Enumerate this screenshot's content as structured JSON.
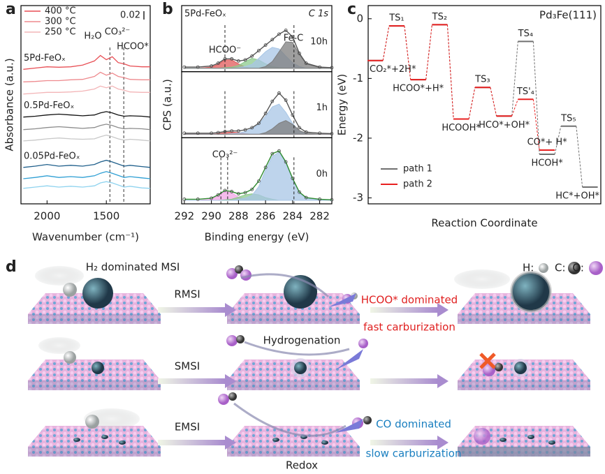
{
  "chart_data": [
    {
      "type": "line",
      "panel_label": "a",
      "xlabel": "Wavenumber (cm⁻¹)",
      "ylabel": "Absorbance (a.u.)",
      "x": [
        2200,
        2100,
        2000,
        1900,
        1800,
        1700,
        1600,
        1550,
        1500,
        1450,
        1400,
        1350,
        1300,
        1200,
        1130
      ],
      "xlim": [
        2220,
        1130
      ],
      "xticks": [
        2000,
        1500
      ],
      "ylim": [
        0,
        0.473
      ],
      "legend": [
        "400 °C",
        "300 °C",
        "250 °C"
      ],
      "group_labels": [
        "5Pd-FeOₓ",
        "0.5Pd-FeOₓ",
        "0.05Pd-FeOₓ"
      ],
      "annotations": [
        "H₂O",
        "CO₃²⁻",
        "HCOO*"
      ],
      "scale_bar": 0.02,
      "vlines": [
        1470,
        1353
      ],
      "series": [
        {
          "color": "#e84f55",
          "values": [
            0.321,
            0.324,
            0.327,
            0.326,
            0.327,
            0.331,
            0.341,
            0.354,
            0.344,
            0.351,
            0.337,
            0.334,
            0.329,
            0.327,
            0.327
          ]
        },
        {
          "color": "#ee8a8e",
          "values": [
            0.291,
            0.292,
            0.294,
            0.294,
            0.296,
            0.297,
            0.304,
            0.314,
            0.307,
            0.312,
            0.304,
            0.301,
            0.297,
            0.296,
            0.296
          ]
        },
        {
          "color": "#f3b5b7",
          "values": [
            0.262,
            0.264,
            0.266,
            0.266,
            0.267,
            0.269,
            0.274,
            0.281,
            0.277,
            0.281,
            0.274,
            0.271,
            0.267,
            0.266,
            0.266
          ]
        },
        {
          "color": "#111111",
          "values": [
            0.207,
            0.209,
            0.212,
            0.214,
            0.212,
            0.21,
            0.212,
            0.217,
            0.22,
            0.217,
            0.212,
            0.209,
            0.21,
            0.209,
            0.207
          ]
        },
        {
          "color": "#8c8c8c",
          "values": [
            0.177,
            0.179,
            0.182,
            0.184,
            0.182,
            0.18,
            0.182,
            0.187,
            0.19,
            0.187,
            0.182,
            0.179,
            0.18,
            0.179,
            0.177
          ]
        },
        {
          "color": "#c8c8c8",
          "values": [
            0.15,
            0.152,
            0.155,
            0.157,
            0.155,
            0.154,
            0.155,
            0.16,
            0.164,
            0.16,
            0.155,
            0.152,
            0.154,
            0.152,
            0.15
          ]
        },
        {
          "color": "#1f5f8b",
          "values": [
            0.087,
            0.09,
            0.094,
            0.09,
            0.092,
            0.09,
            0.094,
            0.1,
            0.104,
            0.1,
            0.095,
            0.09,
            0.092,
            0.089,
            0.087
          ]
        },
        {
          "color": "#2e9fd4",
          "values": [
            0.06,
            0.063,
            0.067,
            0.063,
            0.065,
            0.063,
            0.067,
            0.073,
            0.077,
            0.073,
            0.068,
            0.063,
            0.065,
            0.062,
            0.06
          ]
        },
        {
          "color": "#8fd3ef",
          "values": [
            0.037,
            0.04,
            0.043,
            0.04,
            0.042,
            0.04,
            0.043,
            0.05,
            0.053,
            0.05,
            0.045,
            0.04,
            0.042,
            0.038,
            0.037
          ]
        }
      ]
    },
    {
      "type": "xps",
      "panel_label": "b",
      "title": "5Pd-FeOₓ",
      "subtitle": "C 1s",
      "xlabel": "Binding energy (eV)",
      "ylabel": "CPS (a.u.)",
      "x": [
        292,
        291,
        290,
        289.5,
        289,
        288.5,
        288,
        287.5,
        287,
        286.5,
        286,
        285.5,
        285,
        284.5,
        284,
        283.5,
        283,
        282,
        281.1
      ],
      "xlim": [
        292.2,
        281.1
      ],
      "xticks": [
        292,
        290,
        288,
        286,
        284,
        282
      ],
      "ylim": [
        0,
        1
      ],
      "annotations": [
        "HCOO⁻",
        "Fe-C",
        "CO₃²⁻"
      ],
      "panels": [
        {
          "label": "10h",
          "vlines": [
            289.0,
            283.9
          ],
          "fit_color": "#555555",
          "values": [
            0.02,
            0.02,
            0.04,
            0.09,
            0.17,
            0.17,
            0.13,
            0.15,
            0.22,
            0.32,
            0.42,
            0.52,
            0.62,
            0.69,
            0.57,
            0.27,
            0.09,
            0.02,
            0.01
          ],
          "components": [
            {
              "color": "#e05a5a",
              "values": [
                0,
                0,
                0.02,
                0.07,
                0.15,
                0.15,
                0.08,
                0.02,
                0,
                0,
                0,
                0,
                0,
                0,
                0,
                0,
                0,
                0,
                0
              ]
            },
            {
              "color": "#8cc98c",
              "values": [
                0,
                0,
                0,
                0,
                0.01,
                0.02,
                0.05,
                0.12,
                0.18,
                0.15,
                0.08,
                0.03,
                0.01,
                0,
                0,
                0,
                0,
                0,
                0
              ]
            },
            {
              "color": "#a8c6e6",
              "values": [
                0,
                0,
                0,
                0,
                0,
                0,
                0.01,
                0.03,
                0.07,
                0.18,
                0.3,
                0.38,
                0.35,
                0.22,
                0.1,
                0.03,
                0,
                0,
                0
              ]
            },
            {
              "color": "#7d7d7d",
              "values": [
                0,
                0,
                0,
                0,
                0,
                0,
                0,
                0,
                0,
                0,
                0.03,
                0.12,
                0.3,
                0.48,
                0.47,
                0.25,
                0.08,
                0.01,
                0
              ]
            }
          ]
        },
        {
          "label": "1h",
          "vlines": [
            289.0,
            283.9
          ],
          "fit_color": "#555555",
          "values": [
            0.02,
            0.02,
            0.02,
            0.03,
            0.05,
            0.06,
            0.06,
            0.08,
            0.12,
            0.2,
            0.38,
            0.6,
            0.75,
            0.62,
            0.35,
            0.12,
            0.04,
            0.02,
            0.01
          ],
          "components": [
            {
              "color": "#e05a5a",
              "values": [
                0,
                0,
                0,
                0.01,
                0.03,
                0.04,
                0.03,
                0.01,
                0,
                0,
                0,
                0,
                0,
                0,
                0,
                0,
                0,
                0,
                0
              ]
            },
            {
              "color": "#a8c6e6",
              "values": [
                0,
                0,
                0,
                0,
                0,
                0.01,
                0.02,
                0.05,
                0.1,
                0.18,
                0.33,
                0.5,
                0.55,
                0.4,
                0.2,
                0.06,
                0.01,
                0,
                0
              ]
            },
            {
              "color": "#7d7d7d",
              "values": [
                0,
                0,
                0,
                0,
                0,
                0,
                0,
                0,
                0,
                0,
                0.03,
                0.1,
                0.2,
                0.25,
                0.18,
                0.07,
                0.02,
                0,
                0
              ]
            }
          ]
        },
        {
          "label": "0h",
          "vlines": [
            289.3,
            288.8,
            283.9
          ],
          "fit_color": "#2e8b2e",
          "values": [
            0.02,
            0.02,
            0.04,
            0.1,
            0.18,
            0.16,
            0.12,
            0.14,
            0.2,
            0.35,
            0.6,
            0.85,
            0.9,
            0.7,
            0.4,
            0.15,
            0.05,
            0.02,
            0.01
          ],
          "components": [
            {
              "color": "#f2a6e6",
              "values": [
                0,
                0,
                0.02,
                0.08,
                0.16,
                0.14,
                0.06,
                0.02,
                0,
                0,
                0,
                0,
                0,
                0,
                0,
                0,
                0,
                0,
                0
              ]
            },
            {
              "color": "#8cc98c",
              "values": [
                0,
                0,
                0,
                0,
                0.01,
                0.02,
                0.06,
                0.1,
                0.12,
                0.1,
                0.05,
                0.02,
                0,
                0,
                0,
                0,
                0,
                0,
                0
              ]
            },
            {
              "color": "#a8c6e6",
              "values": [
                0,
                0,
                0,
                0,
                0,
                0,
                0.02,
                0.04,
                0.09,
                0.25,
                0.55,
                0.8,
                0.88,
                0.68,
                0.38,
                0.14,
                0.04,
                0.01,
                0
              ]
            }
          ]
        }
      ]
    },
    {
      "type": "energy",
      "panel_label": "c",
      "title": "Pd₃Fe(111)",
      "xlabel": "Reaction Coordinate",
      "ylabel": "Energy (eV)",
      "xlim": [
        -0.33,
        10.5
      ],
      "ylim": [
        -3.1,
        0.22
      ],
      "yticks": [
        -3,
        -2,
        -1,
        0
      ],
      "legend_loc": "lower left",
      "series": [
        {
          "name": "path 1",
          "color": "#707070",
          "x": [
            0,
            1,
            2,
            3,
            4,
            5,
            6,
            7,
            8,
            9,
            10
          ],
          "values": [
            -0.7,
            -0.12,
            -1.02,
            -0.1,
            -1.68,
            -1.15,
            -1.63,
            -0.38,
            -2.27,
            -1.8,
            -2.82
          ],
          "labels": [
            "CO₂*+2H*",
            null,
            "HCOO*+H*",
            null,
            "HCOOH*",
            null,
            "HCO*+OH*",
            "TS₄",
            "HCOH*",
            "TS₅",
            "HC*+OH*"
          ]
        },
        {
          "name": "path 2",
          "color": "#e82020",
          "x": [
            0,
            1,
            2,
            3,
            4,
            5,
            6,
            7,
            8
          ],
          "values": [
            -0.7,
            -0.12,
            -1.02,
            -0.1,
            -1.68,
            -1.15,
            -1.63,
            -1.35,
            -2.2
          ],
          "labels": [
            null,
            "TS₁",
            null,
            "TS₂",
            null,
            "TS₃",
            null,
            "TS'₄",
            "CO*+ H*"
          ]
        }
      ]
    }
  ],
  "diagram": {
    "panel_label": "d",
    "title": "H₂ dominated MSI",
    "key": [
      "H:",
      "C:",
      "O:"
    ],
    "interfaces": [
      "RMSI",
      "SMSI",
      "EMSI"
    ],
    "processes": [
      "Hydrogenation",
      "Redox"
    ],
    "outcomes": [
      "HCOO* dominated",
      "fast carburization",
      "CO dominated",
      "slow carburization"
    ]
  }
}
